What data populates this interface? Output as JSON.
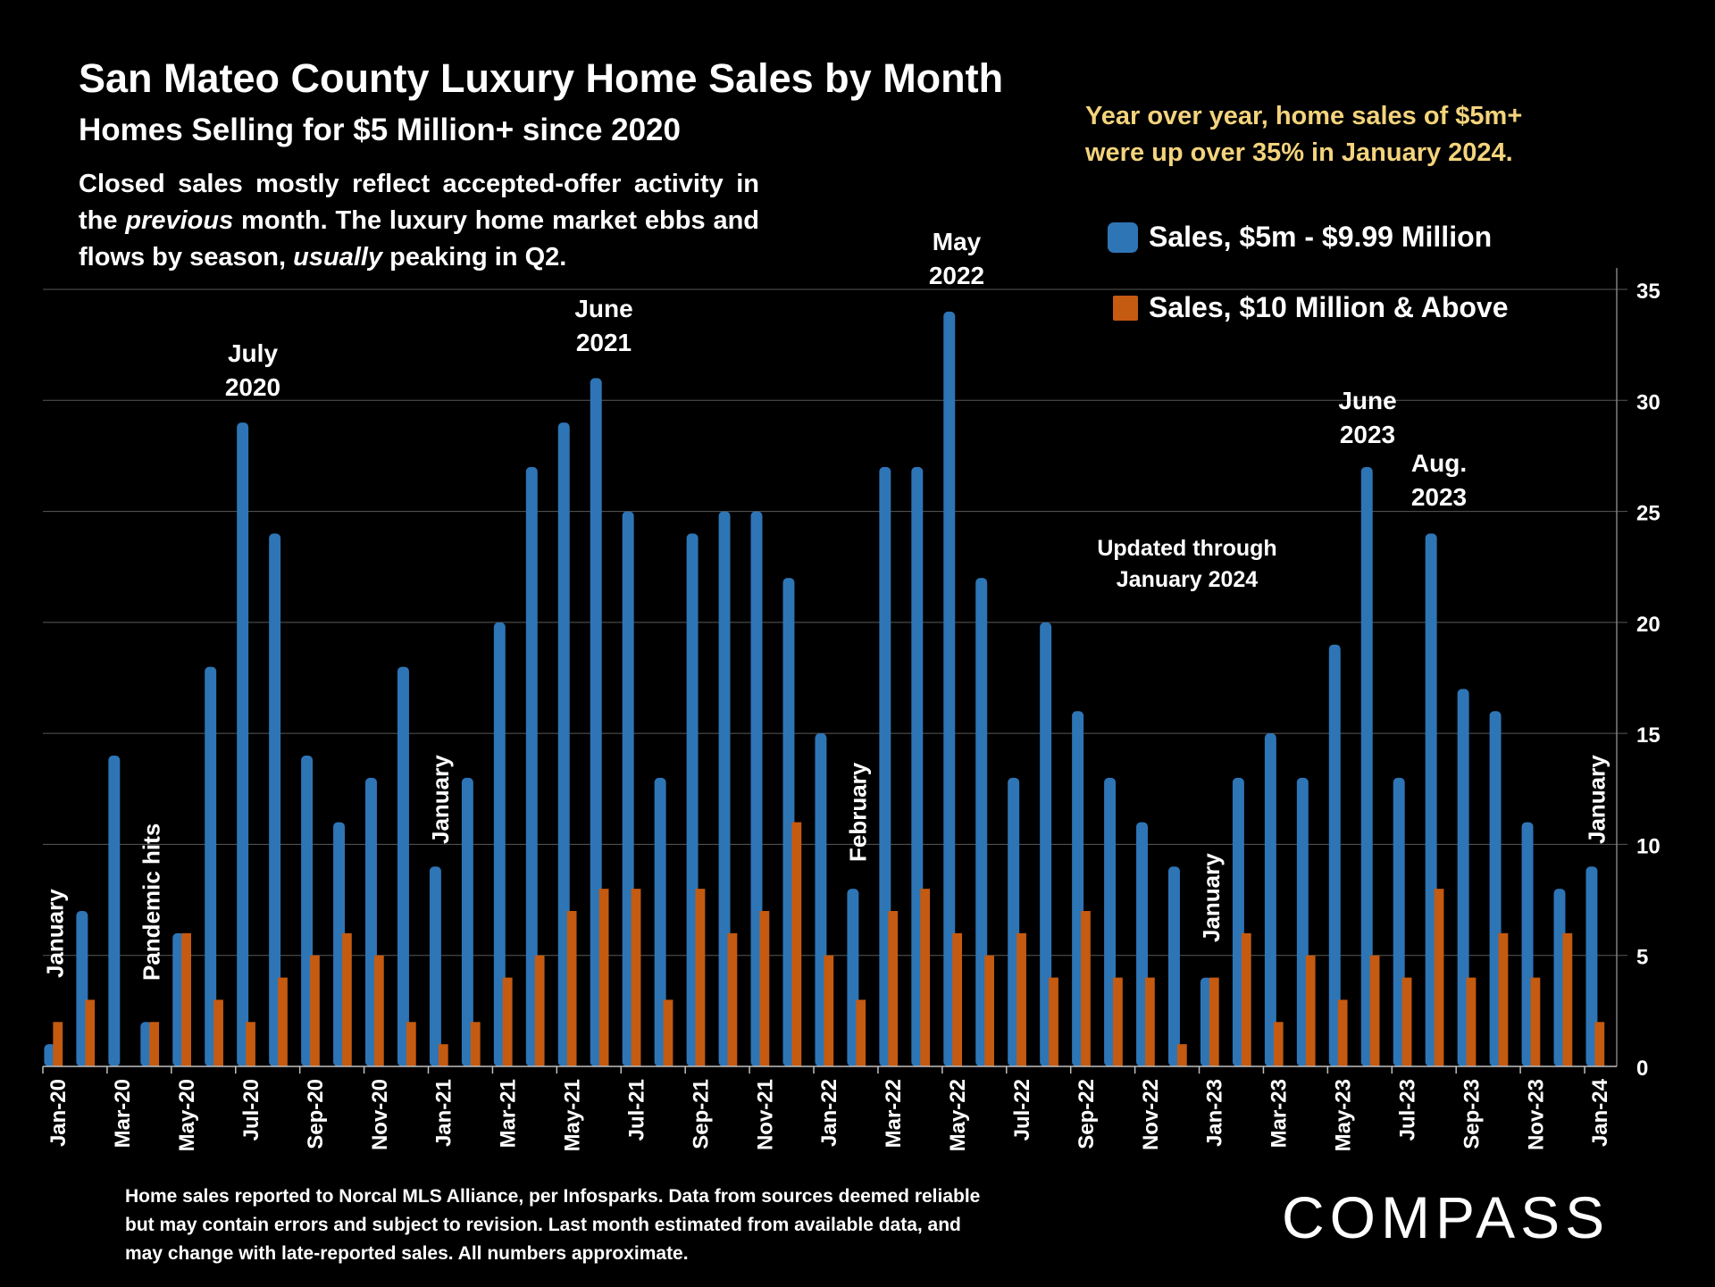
{
  "header": {
    "title": "San Mateo County Luxury Home Sales by Month",
    "subtitle": "Homes Selling for $5 Million+ since 2020",
    "description_parts": {
      "p1": "Closed sales mostly reflect accepted-offer activity in the ",
      "p2": "previous",
      "p3": " month. The luxury home market ebbs and flows by season, ",
      "p4": "usually",
      "p5": " peaking in Q2."
    },
    "callout_line1": "Year over year, home sales of $5m+",
    "callout_line2": "were up over 35% in January 2024."
  },
  "footer": {
    "note_line1": "Home sales reported to Norcal MLS Alliance, per Infosparks. Data from sources deemed reliable",
    "note_line2": "but may contain errors and subject to revision.  Last month estimated from available data, and",
    "note_line3": "may change with late-reported sales. All numbers approximate.",
    "logo": "COMPASS"
  },
  "colors": {
    "blue": "#2e75b6",
    "orange": "#c55a11",
    "callout": "#f3d37c",
    "gridline": "#595959",
    "background": "#000000"
  },
  "chart_data": {
    "type": "bar",
    "title": "San Mateo County Luxury Home Sales by Month",
    "xlabel": "",
    "ylabel": "",
    "ylim": [
      0,
      35
    ],
    "yticks": [
      0,
      5,
      10,
      15,
      20,
      25,
      30,
      35
    ],
    "y_axis_side": "right",
    "grid": true,
    "legend_position": "top-right",
    "categories": [
      "Jan-20",
      "Feb-20",
      "Mar-20",
      "Apr-20",
      "May-20",
      "Jun-20",
      "Jul-20",
      "Aug-20",
      "Sep-20",
      "Oct-20",
      "Nov-20",
      "Dec-20",
      "Jan-21",
      "Feb-21",
      "Mar-21",
      "Apr-21",
      "May-21",
      "Jun-21",
      "Jul-21",
      "Aug-21",
      "Sep-21",
      "Oct-21",
      "Nov-21",
      "Dec-21",
      "Jan-22",
      "Feb-22",
      "Mar-22",
      "Apr-22",
      "May-22",
      "Jun-22",
      "Jul-22",
      "Aug-22",
      "Sep-22",
      "Oct-22",
      "Nov-22",
      "Dec-22",
      "Jan-23",
      "Feb-23",
      "Mar-23",
      "Apr-23",
      "May-23",
      "Jun-23",
      "Jul-23",
      "Aug-23",
      "Sep-23",
      "Oct-23",
      "Nov-23",
      "Dec-23",
      "Jan-24"
    ],
    "tick_labels_shown": [
      "Jan-20",
      "Mar-20",
      "May-20",
      "Jul-20",
      "Sep-20",
      "Nov-20",
      "Jan-21",
      "Mar-21",
      "May-21",
      "Jul-21",
      "Sep-21",
      "Nov-21",
      "Jan-22",
      "Mar-22",
      "May-22",
      "Jul-22",
      "Sep-22",
      "Nov-22",
      "Jan-23",
      "Mar-23",
      "May-23",
      "Jul-23",
      "Sep-23",
      "Nov-23",
      "Jan-24"
    ],
    "series": [
      {
        "name": "Sales, $5m - $9.99 Million",
        "color": "#2e75b6",
        "values": [
          1,
          7,
          14,
          2,
          6,
          18,
          29,
          24,
          14,
          11,
          13,
          18,
          9,
          13,
          20,
          27,
          29,
          31,
          25,
          13,
          24,
          25,
          25,
          22,
          15,
          8,
          27,
          27,
          34,
          22,
          13,
          20,
          16,
          13,
          11,
          9,
          4,
          13,
          15,
          13,
          19,
          27,
          13,
          24,
          17,
          16,
          11,
          8,
          9
        ]
      },
      {
        "name": "Sales, $10 Million & Above",
        "color": "#c55a11",
        "values": [
          2,
          3,
          0,
          2,
          6,
          3,
          2,
          4,
          5,
          6,
          5,
          2,
          1,
          2,
          4,
          5,
          7,
          8,
          8,
          3,
          8,
          6,
          7,
          11,
          5,
          3,
          7,
          8,
          6,
          5,
          6,
          4,
          7,
          4,
          4,
          1,
          4,
          6,
          2,
          5,
          3,
          5,
          4,
          8,
          4,
          6,
          4,
          6,
          2
        ]
      }
    ],
    "annotations": [
      {
        "text": "January",
        "category": "Jan-20",
        "orientation": "vertical"
      },
      {
        "text": "Pandemic hits",
        "category": "Apr-20",
        "orientation": "vertical"
      },
      {
        "text": "July\n2020",
        "category": "Jul-20",
        "orientation": "horizontal"
      },
      {
        "text": "January",
        "category": "Jan-21",
        "orientation": "vertical"
      },
      {
        "text": "June\n2021",
        "category": "Jun-21",
        "orientation": "horizontal"
      },
      {
        "text": "February",
        "category": "Feb-22",
        "orientation": "vertical"
      },
      {
        "text": "May\n2022",
        "category": "May-22",
        "orientation": "horizontal"
      },
      {
        "text": "Updated through\nJanuary 2024",
        "category": "Nov-22",
        "orientation": "horizontal"
      },
      {
        "text": "January",
        "category": "Jan-23",
        "orientation": "vertical"
      },
      {
        "text": "June\n2023",
        "category": "Jun-23",
        "orientation": "horizontal"
      },
      {
        "text": "Aug.\n2023",
        "category": "Aug-23",
        "orientation": "horizontal"
      },
      {
        "text": "January",
        "category": "Jan-24",
        "orientation": "vertical"
      }
    ]
  }
}
